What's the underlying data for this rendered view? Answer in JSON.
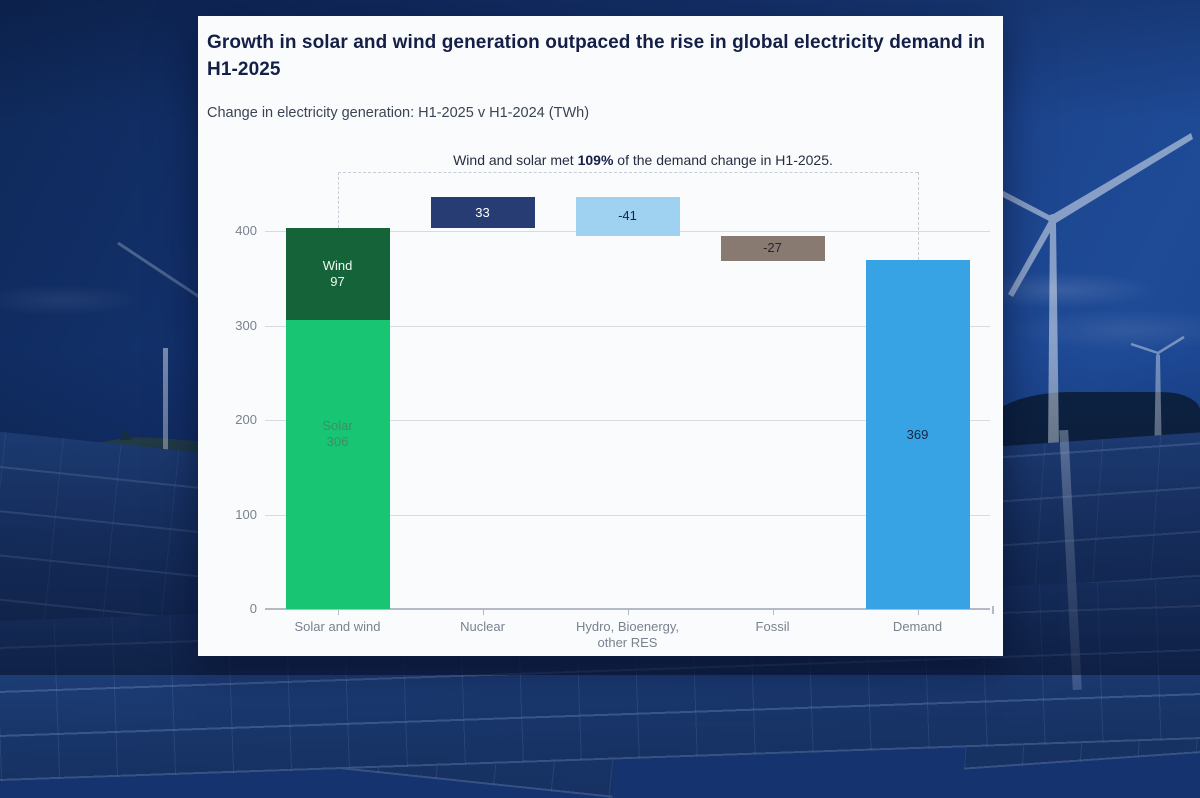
{
  "card": {
    "title": "Growth in solar and wind generation outpaced the rise in global electricity demand in H1-2025",
    "subtitle": "Change in electricity generation: H1-2025 v H1-2024 (TWh)",
    "annotation": {
      "prefix": "Wind and solar met ",
      "highlight": "109%",
      "suffix": " of the demand change in H1-2025."
    }
  },
  "background": {
    "elements": [
      "wind-turbine-large",
      "wind-turbine-small",
      "wind-turbine-pole",
      "solar-panel-field",
      "hills",
      "sky"
    ],
    "overlay_color": "#15336e"
  },
  "chart_data": {
    "type": "bar",
    "subtype": "waterfall with stacked first column",
    "unit": "TWh",
    "title": "Growth in solar and wind generation outpaced the rise in global electricity demand in H1-2025",
    "subtitle": "Change in electricity generation: H1-2025 v H1-2024 (TWh)",
    "annotation": "Wind and solar met 109% of the demand change in H1-2025.",
    "ylim": [
      0,
      460
    ],
    "yticks": [
      0,
      100,
      200,
      300,
      400
    ],
    "grid": "horizontal",
    "legend": "none",
    "categories": [
      "Solar and wind",
      "Nuclear",
      "Hydro, Bioenergy,\nother RES",
      "Fossil",
      "Demand"
    ],
    "columns": [
      {
        "id": "solar-wind",
        "label": "Solar and wind",
        "segments": [
          {
            "name": "Solar",
            "value": 306,
            "start": 0,
            "end": 306,
            "color": "#17c572",
            "label": "Solar\n306",
            "label_color": "#3f8e66"
          },
          {
            "name": "Wind",
            "value": 97,
            "start": 306,
            "end": 403,
            "color": "#156338",
            "label": "Wind\n97",
            "label_color": "#f2f7f4"
          }
        ]
      },
      {
        "id": "nuclear",
        "label": "Nuclear",
        "segments": [
          {
            "name": "Nuclear",
            "value": 33,
            "start": 403,
            "end": 436,
            "color": "#263c73",
            "label": "33",
            "label_color": "#ffffff"
          }
        ]
      },
      {
        "id": "hydro-bio-res",
        "label": "Hydro, Bioenergy,\nother RES",
        "segments": [
          {
            "name": "Hydro, Bioenergy, other RES",
            "value": -41,
            "start": 395,
            "end": 436,
            "color": "#9ed2f0",
            "label": "-41",
            "label_color": "#16233f"
          }
        ]
      },
      {
        "id": "fossil",
        "label": "Fossil",
        "segments": [
          {
            "name": "Fossil",
            "value": -27,
            "start": 368,
            "end": 395,
            "color": "#897a71",
            "label": "-27",
            "label_color": "#27242a"
          }
        ]
      },
      {
        "id": "demand",
        "label": "Demand",
        "segments": [
          {
            "name": "Demand",
            "value": 369,
            "start": 0,
            "end": 369,
            "color": "#38a3e4",
            "label": "369",
            "label_color": "#17253e"
          }
        ]
      }
    ],
    "connector": {
      "style": "dashed",
      "from_column": "solar-wind",
      "from_value": 403,
      "to_column": "demand",
      "to_value": 369
    }
  }
}
